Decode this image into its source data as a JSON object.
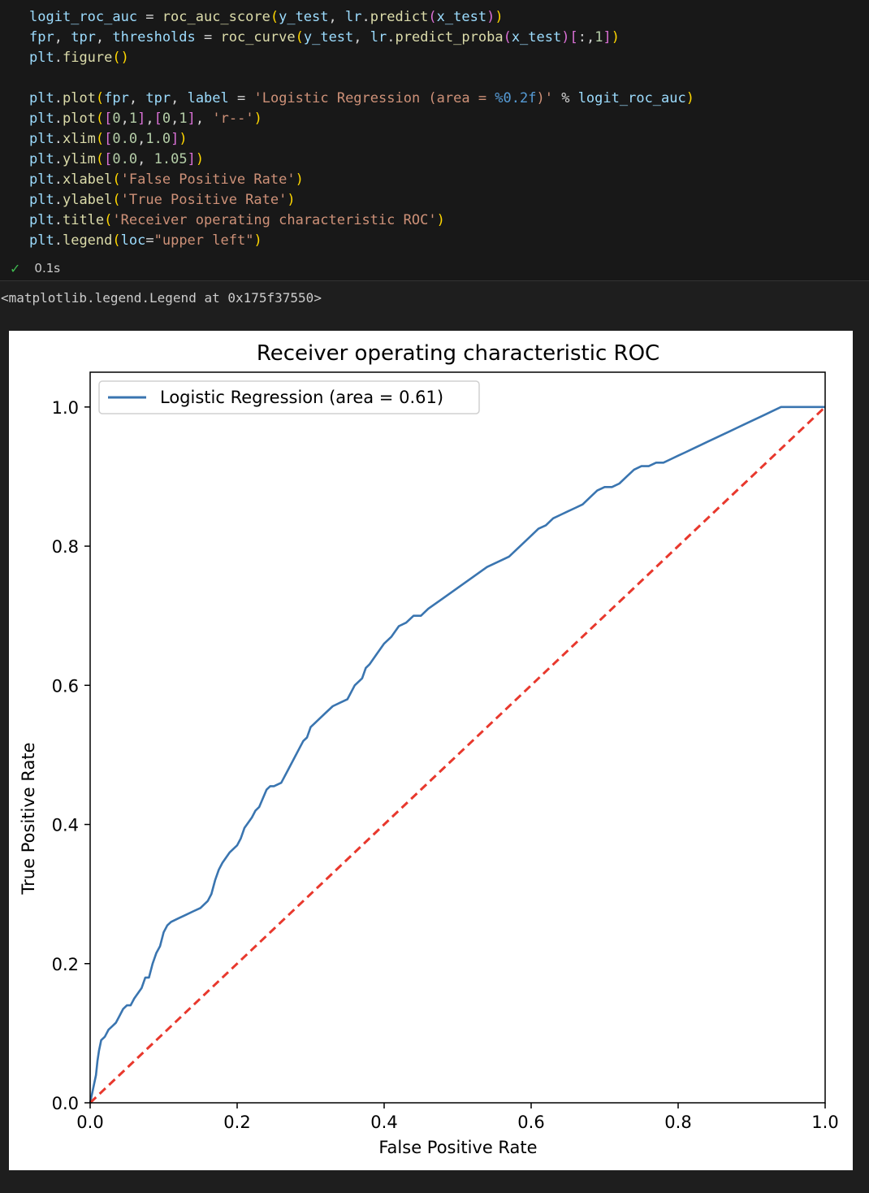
{
  "code_cell": {
    "lines": [
      [
        {
          "t": "logit_roc_auc",
          "c": "var"
        },
        {
          "t": " = ",
          "c": "op"
        },
        {
          "t": "roc_auc_score",
          "c": "fn"
        },
        {
          "t": "(",
          "c": "p1"
        },
        {
          "t": "y_test",
          "c": "var"
        },
        {
          "t": ", ",
          "c": "op"
        },
        {
          "t": "lr",
          "c": "var"
        },
        {
          "t": ".",
          "c": "op"
        },
        {
          "t": "predict",
          "c": "fn"
        },
        {
          "t": "(",
          "c": "p2"
        },
        {
          "t": "x_test",
          "c": "var"
        },
        {
          "t": ")",
          "c": "p2"
        },
        {
          "t": ")",
          "c": "p1"
        }
      ],
      [
        {
          "t": "fpr",
          "c": "var"
        },
        {
          "t": ", ",
          "c": "op"
        },
        {
          "t": "tpr",
          "c": "var"
        },
        {
          "t": ", ",
          "c": "op"
        },
        {
          "t": "thresholds",
          "c": "var"
        },
        {
          "t": " = ",
          "c": "op"
        },
        {
          "t": "roc_curve",
          "c": "fn"
        },
        {
          "t": "(",
          "c": "p1"
        },
        {
          "t": "y_test",
          "c": "var"
        },
        {
          "t": ", ",
          "c": "op"
        },
        {
          "t": "lr",
          "c": "var"
        },
        {
          "t": ".",
          "c": "op"
        },
        {
          "t": "predict_proba",
          "c": "fn"
        },
        {
          "t": "(",
          "c": "p2"
        },
        {
          "t": "x_test",
          "c": "var"
        },
        {
          "t": ")",
          "c": "p2"
        },
        {
          "t": "[",
          "c": "p2"
        },
        {
          "t": ":,",
          "c": "op"
        },
        {
          "t": "1",
          "c": "num"
        },
        {
          "t": "]",
          "c": "p2"
        },
        {
          "t": ")",
          "c": "p1"
        }
      ],
      [
        {
          "t": "plt",
          "c": "var"
        },
        {
          "t": ".",
          "c": "op"
        },
        {
          "t": "figure",
          "c": "fn"
        },
        {
          "t": "()",
          "c": "p1"
        }
      ],
      [],
      [
        {
          "t": "plt",
          "c": "var"
        },
        {
          "t": ".",
          "c": "op"
        },
        {
          "t": "plot",
          "c": "fn"
        },
        {
          "t": "(",
          "c": "p1"
        },
        {
          "t": "fpr",
          "c": "var"
        },
        {
          "t": ", ",
          "c": "op"
        },
        {
          "t": "tpr",
          "c": "var"
        },
        {
          "t": ", ",
          "c": "op"
        },
        {
          "t": "label",
          "c": "var"
        },
        {
          "t": " = ",
          "c": "op"
        },
        {
          "t": "'Logistic Regression (area = ",
          "c": "str"
        },
        {
          "t": "%0.2f",
          "c": "fmt"
        },
        {
          "t": ")'",
          "c": "str"
        },
        {
          "t": " % ",
          "c": "op"
        },
        {
          "t": "logit_roc_auc",
          "c": "var"
        },
        {
          "t": ")",
          "c": "p1"
        }
      ],
      [
        {
          "t": "plt",
          "c": "var"
        },
        {
          "t": ".",
          "c": "op"
        },
        {
          "t": "plot",
          "c": "fn"
        },
        {
          "t": "(",
          "c": "p1"
        },
        {
          "t": "[",
          "c": "p2"
        },
        {
          "t": "0",
          "c": "num"
        },
        {
          "t": ",",
          "c": "op"
        },
        {
          "t": "1",
          "c": "num"
        },
        {
          "t": "]",
          "c": "p2"
        },
        {
          "t": ",",
          "c": "op"
        },
        {
          "t": "[",
          "c": "p2"
        },
        {
          "t": "0",
          "c": "num"
        },
        {
          "t": ",",
          "c": "op"
        },
        {
          "t": "1",
          "c": "num"
        },
        {
          "t": "]",
          "c": "p2"
        },
        {
          "t": ", ",
          "c": "op"
        },
        {
          "t": "'r--'",
          "c": "str"
        },
        {
          "t": ")",
          "c": "p1"
        }
      ],
      [
        {
          "t": "plt",
          "c": "var"
        },
        {
          "t": ".",
          "c": "op"
        },
        {
          "t": "xlim",
          "c": "fn"
        },
        {
          "t": "(",
          "c": "p1"
        },
        {
          "t": "[",
          "c": "p2"
        },
        {
          "t": "0.0",
          "c": "num"
        },
        {
          "t": ",",
          "c": "op"
        },
        {
          "t": "1.0",
          "c": "num"
        },
        {
          "t": "]",
          "c": "p2"
        },
        {
          "t": ")",
          "c": "p1"
        }
      ],
      [
        {
          "t": "plt",
          "c": "var"
        },
        {
          "t": ".",
          "c": "op"
        },
        {
          "t": "ylim",
          "c": "fn"
        },
        {
          "t": "(",
          "c": "p1"
        },
        {
          "t": "[",
          "c": "p2"
        },
        {
          "t": "0.0",
          "c": "num"
        },
        {
          "t": ", ",
          "c": "op"
        },
        {
          "t": "1.05",
          "c": "num"
        },
        {
          "t": "]",
          "c": "p2"
        },
        {
          "t": ")",
          "c": "p1"
        }
      ],
      [
        {
          "t": "plt",
          "c": "var"
        },
        {
          "t": ".",
          "c": "op"
        },
        {
          "t": "xlabel",
          "c": "fn"
        },
        {
          "t": "(",
          "c": "p1"
        },
        {
          "t": "'False Positive Rate'",
          "c": "str"
        },
        {
          "t": ")",
          "c": "p1"
        }
      ],
      [
        {
          "t": "plt",
          "c": "var"
        },
        {
          "t": ".",
          "c": "op"
        },
        {
          "t": "ylabel",
          "c": "fn"
        },
        {
          "t": "(",
          "c": "p1"
        },
        {
          "t": "'True Positive Rate'",
          "c": "str"
        },
        {
          "t": ")",
          "c": "p1"
        }
      ],
      [
        {
          "t": "plt",
          "c": "var"
        },
        {
          "t": ".",
          "c": "op"
        },
        {
          "t": "title",
          "c": "fn"
        },
        {
          "t": "(",
          "c": "p1"
        },
        {
          "t": "'Receiver operating characteristic ROC'",
          "c": "str"
        },
        {
          "t": ")",
          "c": "p1"
        }
      ],
      [
        {
          "t": "plt",
          "c": "var"
        },
        {
          "t": ".",
          "c": "op"
        },
        {
          "t": "legend",
          "c": "fn"
        },
        {
          "t": "(",
          "c": "p1"
        },
        {
          "t": "loc",
          "c": "var"
        },
        {
          "t": "=",
          "c": "op"
        },
        {
          "t": "\"upper left\"",
          "c": "str"
        },
        {
          "t": ")",
          "c": "p1"
        }
      ]
    ],
    "exec_time": "0.1s",
    "status_icon": "check-icon"
  },
  "output": {
    "repr": "<matplotlib.legend.Legend at 0x175f37550>"
  },
  "colors": {
    "background": "#1e1e1e",
    "cell_background": "#181818",
    "success": "#3fb950",
    "series_line": "#3a75b0",
    "diagonal": "#e8382d"
  },
  "chart_data": {
    "type": "line",
    "title": "Receiver operating characteristic ROC",
    "xlabel": "False Positive Rate",
    "ylabel": "True Positive Rate",
    "xlim": [
      0.0,
      1.0
    ],
    "ylim": [
      0.0,
      1.05
    ],
    "xticks": [
      0.0,
      0.2,
      0.4,
      0.6,
      0.8,
      1.0
    ],
    "yticks": [
      0.0,
      0.2,
      0.4,
      0.6,
      0.8,
      1.0
    ],
    "xtick_labels": [
      "0.0",
      "0.2",
      "0.4",
      "0.6",
      "0.8",
      "1.0"
    ],
    "ytick_labels": [
      "0.0",
      "0.2",
      "0.4",
      "0.6",
      "0.8",
      "1.0"
    ],
    "legend": {
      "loc": "upper left",
      "entries": [
        "Logistic Regression (area = 0.61)"
      ]
    },
    "grid": false,
    "series": [
      {
        "name": "Logistic Regression (area = 0.61)",
        "style": "solid",
        "color": "#3a75b0",
        "x": [
          0.0,
          0.004,
          0.008,
          0.01,
          0.012,
          0.015,
          0.02,
          0.025,
          0.03,
          0.035,
          0.04,
          0.045,
          0.05,
          0.055,
          0.06,
          0.07,
          0.075,
          0.08,
          0.085,
          0.09,
          0.095,
          0.1,
          0.105,
          0.11,
          0.12,
          0.13,
          0.14,
          0.15,
          0.16,
          0.165,
          0.17,
          0.175,
          0.18,
          0.19,
          0.2,
          0.205,
          0.21,
          0.22,
          0.225,
          0.23,
          0.24,
          0.245,
          0.25,
          0.26,
          0.27,
          0.28,
          0.285,
          0.29,
          0.295,
          0.3,
          0.31,
          0.32,
          0.33,
          0.34,
          0.35,
          0.36,
          0.37,
          0.375,
          0.38,
          0.39,
          0.4,
          0.41,
          0.42,
          0.43,
          0.44,
          0.45,
          0.46,
          0.48,
          0.5,
          0.52,
          0.54,
          0.56,
          0.57,
          0.58,
          0.59,
          0.6,
          0.61,
          0.62,
          0.63,
          0.64,
          0.65,
          0.66,
          0.67,
          0.68,
          0.69,
          0.7,
          0.71,
          0.72,
          0.73,
          0.74,
          0.75,
          0.76,
          0.77,
          0.78,
          0.79,
          0.8,
          0.81,
          0.82,
          0.83,
          0.84,
          0.85,
          0.86,
          0.87,
          0.88,
          0.89,
          0.9,
          0.91,
          0.92,
          0.93,
          0.94,
          0.95,
          0.96,
          0.97,
          0.98,
          0.99,
          1.0
        ],
        "y": [
          0.0,
          0.02,
          0.04,
          0.06,
          0.075,
          0.09,
          0.095,
          0.105,
          0.11,
          0.115,
          0.125,
          0.135,
          0.14,
          0.14,
          0.15,
          0.165,
          0.18,
          0.18,
          0.2,
          0.215,
          0.225,
          0.245,
          0.255,
          0.26,
          0.265,
          0.27,
          0.275,
          0.28,
          0.29,
          0.3,
          0.32,
          0.335,
          0.345,
          0.36,
          0.37,
          0.38,
          0.395,
          0.41,
          0.42,
          0.425,
          0.45,
          0.455,
          0.455,
          0.46,
          0.48,
          0.5,
          0.51,
          0.52,
          0.525,
          0.54,
          0.55,
          0.56,
          0.57,
          0.575,
          0.58,
          0.6,
          0.61,
          0.625,
          0.63,
          0.645,
          0.66,
          0.67,
          0.685,
          0.69,
          0.7,
          0.7,
          0.71,
          0.725,
          0.74,
          0.755,
          0.77,
          0.78,
          0.785,
          0.795,
          0.805,
          0.815,
          0.825,
          0.83,
          0.84,
          0.845,
          0.85,
          0.855,
          0.86,
          0.87,
          0.88,
          0.885,
          0.885,
          0.89,
          0.9,
          0.91,
          0.915,
          0.915,
          0.92,
          0.92,
          0.925,
          0.93,
          0.935,
          0.94,
          0.945,
          0.95,
          0.955,
          0.96,
          0.965,
          0.97,
          0.975,
          0.98,
          0.985,
          0.99,
          0.995,
          1.0,
          1.0,
          1.0,
          1.0,
          1.0,
          1.0,
          1.0
        ]
      },
      {
        "name": "",
        "style": "dashed",
        "color": "#e8382d",
        "x": [
          0,
          1
        ],
        "y": [
          0,
          1
        ]
      }
    ]
  }
}
